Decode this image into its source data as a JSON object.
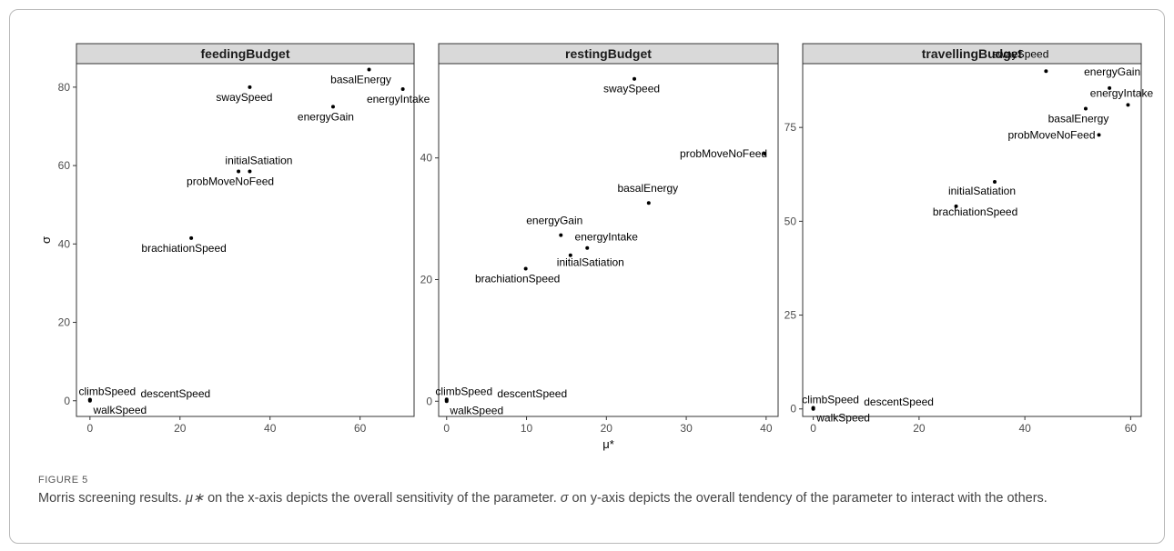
{
  "figure": {
    "label": "FIGURE 5",
    "caption_parts": [
      "Morris screening results. ",
      "μ∗",
      " on the x-axis depicts the overall sensitivity of the parameter. ",
      "σ",
      " on y-axis depicts the overall tendency of the parameter to interact with the others."
    ]
  },
  "axes": {
    "xlabel": "μ*",
    "ylabel": "σ"
  },
  "chart_data": [
    {
      "type": "scatter",
      "title": "feedingBudget",
      "xlim": [
        -3,
        72
      ],
      "ylim": [
        -4,
        86
      ],
      "xticks": [
        0,
        20,
        40,
        60
      ],
      "yticks": [
        0,
        20,
        40,
        60,
        80
      ],
      "points": [
        {
          "label": "basalEnergy",
          "x": 62,
          "y": 84.5
        },
        {
          "label": "energyIntake",
          "x": 69.5,
          "y": 79.5
        },
        {
          "label": "swaySpeed",
          "x": 35.5,
          "y": 80
        },
        {
          "label": "energyGain",
          "x": 54,
          "y": 75
        },
        {
          "label": "initialSatiation",
          "x": 35.5,
          "y": 58.5
        },
        {
          "label": "probMoveNoFeed",
          "x": 33,
          "y": 58.5
        },
        {
          "label": "brachiationSpeed",
          "x": 22.5,
          "y": 41.5
        },
        {
          "label": "climbSpeed",
          "x": 0,
          "y": 0.3
        },
        {
          "label": "descentSpeed",
          "x": 0,
          "y": 0.2
        },
        {
          "label": "walkSpeed",
          "x": 0,
          "y": 0
        }
      ]
    },
    {
      "type": "scatter",
      "title": "restingBudget",
      "xlim": [
        -1,
        41.5
      ],
      "ylim": [
        -2.5,
        55.5
      ],
      "xticks": [
        0,
        10,
        20,
        30,
        40
      ],
      "yticks": [
        0,
        20,
        40
      ],
      "points": [
        {
          "label": "swaySpeed",
          "x": 23.5,
          "y": 53
        },
        {
          "label": "probMoveNoFeed",
          "x": 39.8,
          "y": 40.7
        },
        {
          "label": "basalEnergy",
          "x": 25.3,
          "y": 32.6
        },
        {
          "label": "energyGain",
          "x": 14.3,
          "y": 27.3
        },
        {
          "label": "energyIntake",
          "x": 17.6,
          "y": 25.2
        },
        {
          "label": "initialSatiation",
          "x": 15.5,
          "y": 24
        },
        {
          "label": "brachiationSpeed",
          "x": 9.9,
          "y": 21.8
        },
        {
          "label": "climbSpeed",
          "x": 0,
          "y": 0.3
        },
        {
          "label": "descentSpeed",
          "x": 0,
          "y": 0.2
        },
        {
          "label": "walkSpeed",
          "x": 0,
          "y": 0
        }
      ]
    },
    {
      "type": "scatter",
      "title": "travellingBudget",
      "xlim": [
        -2,
        62
      ],
      "ylim": [
        -2,
        92
      ],
      "xticks": [
        0,
        20,
        40,
        60
      ],
      "yticks": [
        0,
        25,
        50,
        75
      ],
      "points": [
        {
          "label": "swaySpeed",
          "x": 44,
          "y": 90
        },
        {
          "label": "energyGain",
          "x": 56,
          "y": 85.5
        },
        {
          "label": "energyIntake",
          "x": 59.5,
          "y": 81
        },
        {
          "label": "basalEnergy",
          "x": 51.5,
          "y": 80
        },
        {
          "label": "probMoveNoFeed",
          "x": 54,
          "y": 73
        },
        {
          "label": "initialSatiation",
          "x": 34.3,
          "y": 60.5
        },
        {
          "label": "brachiationSpeed",
          "x": 27,
          "y": 54
        },
        {
          "label": "climbSpeed",
          "x": 0,
          "y": 0.3
        },
        {
          "label": "descentSpeed",
          "x": 0,
          "y": 0.2
        },
        {
          "label": "walkSpeed",
          "x": 0,
          "y": 0
        }
      ]
    }
  ]
}
